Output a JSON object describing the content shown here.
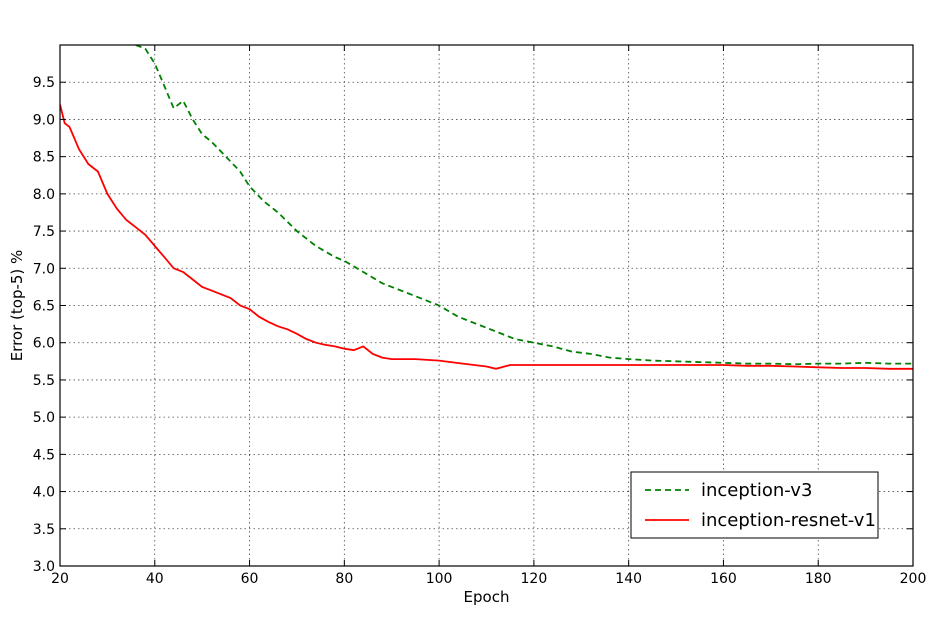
{
  "chart_data": {
    "type": "line",
    "title": "",
    "xlabel": "Epoch",
    "ylabel": "Error (top-5) %",
    "xlim": [
      20,
      200
    ],
    "ylim": [
      3.0,
      10.0
    ],
    "xticks": [
      "20",
      "40",
      "60",
      "80",
      "100",
      "120",
      "140",
      "160",
      "180",
      "200"
    ],
    "yticks": [
      "3.0",
      "3.5",
      "4.0",
      "4.5",
      "5.0",
      "5.5",
      "6.0",
      "6.5",
      "7.0",
      "7.5",
      "8.0",
      "8.5",
      "9.0",
      "9.5"
    ],
    "grid": true,
    "legend_position": "lower-right",
    "series": [
      {
        "name": "inception-v3",
        "color": "#008000",
        "line_style": "dashed",
        "x": [
          36,
          38,
          40,
          42,
          44,
          46,
          48,
          50,
          52,
          55,
          58,
          60,
          63,
          66,
          70,
          74,
          78,
          80,
          84,
          88,
          92,
          96,
          100,
          104,
          108,
          112,
          116,
          120,
          124,
          128,
          132,
          136,
          140,
          145,
          150,
          155,
          160,
          165,
          170,
          175,
          180,
          185,
          190,
          195,
          200
        ],
        "y": [
          10.0,
          9.95,
          9.75,
          9.45,
          9.15,
          9.25,
          9.0,
          8.8,
          8.7,
          8.5,
          8.3,
          8.1,
          7.9,
          7.75,
          7.5,
          7.3,
          7.15,
          7.1,
          6.95,
          6.8,
          6.7,
          6.6,
          6.5,
          6.35,
          6.25,
          6.15,
          6.05,
          6.0,
          5.95,
          5.88,
          5.85,
          5.8,
          5.78,
          5.76,
          5.75,
          5.74,
          5.73,
          5.72,
          5.72,
          5.71,
          5.72,
          5.72,
          5.73,
          5.72,
          5.72
        ]
      },
      {
        "name": "inception-resnet-v1",
        "color": "#ff0000",
        "line_style": "solid",
        "x": [
          20,
          21,
          22,
          24,
          26,
          28,
          30,
          32,
          34,
          36,
          38,
          40,
          42,
          44,
          46,
          48,
          50,
          52,
          54,
          56,
          58,
          60,
          62,
          64,
          66,
          68,
          70,
          72,
          74,
          76,
          78,
          80,
          82,
          84,
          86,
          88,
          90,
          95,
          100,
          105,
          110,
          112,
          115,
          120,
          125,
          130,
          135,
          140,
          145,
          150,
          155,
          160,
          165,
          170,
          175,
          180,
          185,
          190,
          195,
          200
        ],
        "y": [
          9.2,
          8.95,
          8.9,
          8.6,
          8.4,
          8.3,
          8.0,
          7.8,
          7.65,
          7.55,
          7.45,
          7.3,
          7.15,
          7.0,
          6.95,
          6.85,
          6.75,
          6.7,
          6.65,
          6.6,
          6.5,
          6.45,
          6.35,
          6.28,
          6.22,
          6.18,
          6.12,
          6.05,
          6.0,
          5.97,
          5.95,
          5.92,
          5.9,
          5.95,
          5.85,
          5.8,
          5.78,
          5.78,
          5.76,
          5.72,
          5.68,
          5.65,
          5.7,
          5.7,
          5.7,
          5.7,
          5.7,
          5.7,
          5.7,
          5.7,
          5.7,
          5.7,
          5.69,
          5.69,
          5.68,
          5.67,
          5.66,
          5.66,
          5.65,
          5.65
        ]
      }
    ]
  }
}
